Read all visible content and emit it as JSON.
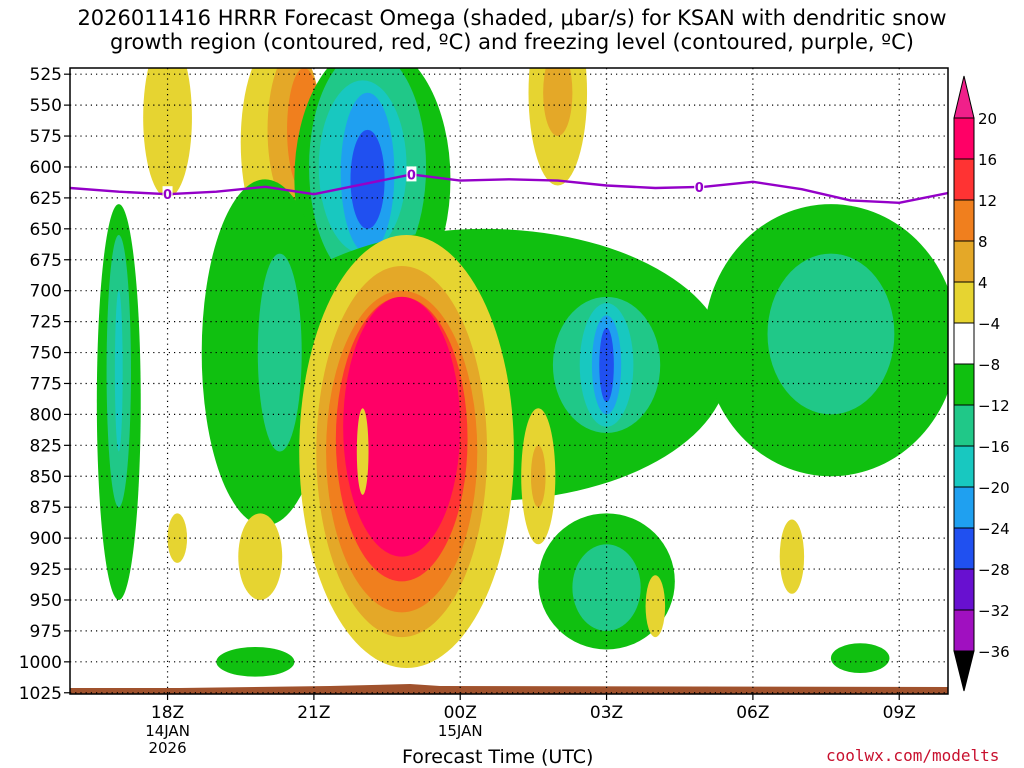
{
  "title_line1": "2026011416 HRRR Forecast Omega (shaded, μbar/s) for KSAN with dendritic snow",
  "title_line2": "growth region (contoured, red, ºC) and freezing level (contoured, purple, ºC)",
  "credit": "coolwx.com/modelts",
  "chart_data": {
    "type": "heatmap",
    "title": "2026011416 HRRR Forecast Omega (shaded, μbar/s) for KSAN with dendritic snow growth region (contoured, red, ºC) and freezing level (contoured, purple, ºC)",
    "xlabel": "Forecast Time (UTC)",
    "ylabel": "",
    "x_ticks": [
      {
        "label": "18Z",
        "sub": [
          "14JAN",
          "2026"
        ],
        "hours": 2
      },
      {
        "label": "21Z",
        "sub": [],
        "hours": 5
      },
      {
        "label": "00Z",
        "sub": [
          "15JAN"
        ],
        "hours": 8
      },
      {
        "label": "03Z",
        "sub": [],
        "hours": 11
      },
      {
        "label": "06Z",
        "sub": [],
        "hours": 14
      },
      {
        "label": "09Z",
        "sub": [],
        "hours": 17
      }
    ],
    "x_range_hours": [
      0,
      18
    ],
    "y_ticks": [
      525,
      550,
      575,
      600,
      625,
      650,
      675,
      700,
      725,
      750,
      775,
      800,
      825,
      850,
      875,
      900,
      925,
      950,
      975,
      1000,
      1025
    ],
    "y_range": [
      520,
      1026
    ],
    "colorbar": {
      "labels": [
        "20",
        "16",
        "12",
        "8",
        "4",
        "−4",
        "−8",
        "−12",
        "−16",
        "−20",
        "−24",
        "−28",
        "−32",
        "−36"
      ],
      "levels": [
        20,
        16,
        12,
        8,
        4,
        -4,
        -8,
        -12,
        -16,
        -20,
        -24,
        -28,
        -32,
        -36
      ],
      "colors": [
        "#ff0066",
        "#ff3333",
        "#f07f1e",
        "#e4a828",
        "#e6d431",
        "#ffffff",
        "#10c010",
        "#20c888",
        "#18c8c0",
        "#1fa0f0",
        "#2050f0",
        "#6810d0",
        "#a010c0",
        "#a0a0a0"
      ],
      "top_color": "#f0208a",
      "bottom_color": "#000000"
    },
    "freezing_level": {
      "label": "0",
      "color": "#9400c8",
      "hours": [
        0,
        1,
        2,
        3,
        4,
        5,
        6,
        7,
        8,
        9,
        10,
        11,
        12,
        13,
        14,
        15,
        16,
        17,
        18
      ],
      "pressure": [
        617,
        620,
        622,
        620,
        616,
        622,
        614,
        606,
        611,
        610,
        611,
        615,
        617,
        616,
        612,
        618,
        627,
        629,
        621
      ],
      "label_hours": [
        2,
        7,
        12.9
      ]
    },
    "omega_regions": [
      {
        "value": 8,
        "center": [
          2.0,
          545
        ],
        "radius": [
          0.25,
          45
        ]
      },
      {
        "value": 4,
        "center": [
          2.0,
          560
        ],
        "radius": [
          0.5,
          65
        ]
      },
      {
        "value": 4,
        "center": [
          4.2,
          580
        ],
        "radius": [
          0.7,
          80
        ]
      },
      {
        "value": 8,
        "center": [
          4.6,
          570
        ],
        "radius": [
          0.55,
          65
        ]
      },
      {
        "value": 12,
        "center": [
          4.8,
          570
        ],
        "radius": [
          0.35,
          50
        ]
      },
      {
        "value": 4,
        "center": [
          10.0,
          540
        ],
        "radius": [
          0.6,
          75
        ]
      },
      {
        "value": 8,
        "center": [
          10.0,
          540
        ],
        "radius": [
          0.3,
          35
        ]
      },
      {
        "value": -8,
        "center": [
          1.0,
          790
        ],
        "radius": [
          0.45,
          160
        ]
      },
      {
        "value": -12,
        "center": [
          1.0,
          765
        ],
        "radius": [
          0.25,
          110
        ]
      },
      {
        "value": -16,
        "center": [
          1.0,
          765
        ],
        "radius": [
          0.08,
          65
        ]
      },
      {
        "value": -8,
        "center": [
          6.2,
          610
        ],
        "radius": [
          1.6,
          110
        ]
      },
      {
        "value": -12,
        "center": [
          6.1,
          600
        ],
        "radius": [
          1.2,
          95
        ]
      },
      {
        "value": -16,
        "center": [
          6.0,
          600
        ],
        "radius": [
          0.9,
          70
        ]
      },
      {
        "value": -20,
        "center": [
          6.1,
          605
        ],
        "radius": [
          0.55,
          65
        ]
      },
      {
        "value": -24,
        "center": [
          6.1,
          610
        ],
        "radius": [
          0.35,
          40
        ]
      },
      {
        "value": -8,
        "center": [
          8.5,
          760
        ],
        "radius": [
          5.0,
          110
        ]
      },
      {
        "value": -8,
        "center": [
          4.0,
          750
        ],
        "radius": [
          1.3,
          140
        ]
      },
      {
        "value": -12,
        "center": [
          4.3,
          750
        ],
        "radius": [
          0.45,
          80
        ]
      },
      {
        "value": -12,
        "center": [
          11.0,
          760
        ],
        "radius": [
          1.1,
          55
        ]
      },
      {
        "value": -16,
        "center": [
          11.0,
          760
        ],
        "radius": [
          0.55,
          50
        ]
      },
      {
        "value": -20,
        "center": [
          11.0,
          760
        ],
        "radius": [
          0.3,
          40
        ]
      },
      {
        "value": -24,
        "center": [
          11.0,
          760
        ],
        "radius": [
          0.15,
          30
        ]
      },
      {
        "value": -8,
        "center": [
          15.6,
          740
        ],
        "radius": [
          2.6,
          110
        ]
      },
      {
        "value": -12,
        "center": [
          15.6,
          735
        ],
        "radius": [
          1.3,
          65
        ]
      },
      {
        "value": -8,
        "center": [
          11.0,
          935
        ],
        "radius": [
          1.4,
          55
        ]
      },
      {
        "value": -12,
        "center": [
          11.0,
          940
        ],
        "radius": [
          0.7,
          35
        ]
      },
      {
        "value": 4,
        "center": [
          6.9,
          830
        ],
        "radius": [
          2.2,
          175
        ]
      },
      {
        "value": 8,
        "center": [
          6.8,
          830
        ],
        "radius": [
          1.75,
          150
        ]
      },
      {
        "value": 12,
        "center": [
          6.8,
          830
        ],
        "radius": [
          1.55,
          130
        ]
      },
      {
        "value": 16,
        "center": [
          6.8,
          820
        ],
        "radius": [
          1.35,
          115
        ]
      },
      {
        "value": 20,
        "center": [
          6.8,
          810
        ],
        "radius": [
          1.2,
          105
        ]
      },
      {
        "value": 4,
        "center": [
          6.0,
          830
        ],
        "radius": [
          0.12,
          35
        ]
      },
      {
        "value": 4,
        "center": [
          9.6,
          850
        ],
        "radius": [
          0.35,
          55
        ]
      },
      {
        "value": 8,
        "center": [
          9.6,
          850
        ],
        "radius": [
          0.15,
          25
        ]
      },
      {
        "value": 4,
        "center": [
          3.9,
          915
        ],
        "radius": [
          0.45,
          35
        ]
      },
      {
        "value": 4,
        "center": [
          2.2,
          900
        ],
        "radius": [
          0.2,
          20
        ]
      },
      {
        "value": 4,
        "center": [
          12.0,
          955
        ],
        "radius": [
          0.2,
          25
        ]
      },
      {
        "value": 4,
        "center": [
          14.8,
          915
        ],
        "radius": [
          0.25,
          30
        ]
      },
      {
        "value": -8,
        "center": [
          3.8,
          1000
        ],
        "radius": [
          0.8,
          12
        ]
      },
      {
        "value": -8,
        "center": [
          16.2,
          997
        ],
        "radius": [
          0.6,
          12
        ]
      }
    ]
  }
}
